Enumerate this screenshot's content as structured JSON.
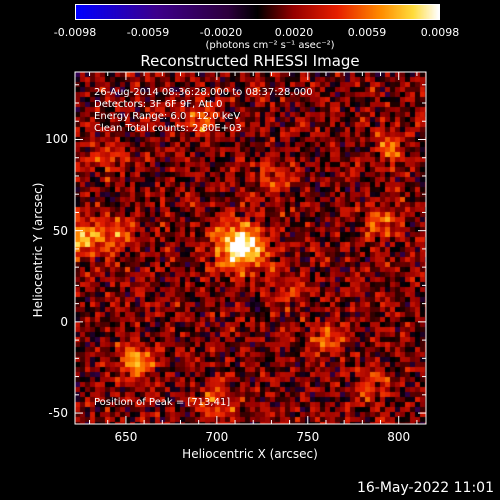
{
  "chart_data": {
    "type": "heatmap",
    "title": "Reconstructed RHESSI Image",
    "xlabel": "Heliocentric X (arcsec)",
    "ylabel": "Heliocentric Y (arcsec)",
    "xlim": [
      622,
      815
    ],
    "ylim": [
      -56,
      137
    ],
    "x_ticks": [
      650,
      700,
      750,
      800
    ],
    "y_ticks": [
      -50,
      0,
      50,
      100
    ],
    "colorbar": {
      "ticks": [
        "-0.0098",
        "-0.0059",
        "-0.0020",
        "0.0020",
        "0.0059",
        "0.0098"
      ],
      "range": [
        -0.0098,
        0.0098
      ],
      "units": "(photons cm⁻² s⁻¹ asec⁻²)"
    },
    "info": {
      "time": "26-Aug-2014 08:36:28.000 to 08:37:28.000",
      "detectors": "Detectors: 3F 6F 9F, Att 0",
      "energy": "Energy Range: 6.0 - 12.0 keV",
      "clean": "Clean     Total counts: 2.80E+03"
    },
    "peak": {
      "label": "Position of Peak = [713,41]",
      "x": 713,
      "y": 41,
      "value": 0.0098
    },
    "sources": [
      {
        "x": 713,
        "y": 41,
        "amp": 0.0098
      },
      {
        "x": 625,
        "y": 47,
        "amp": 0.0065
      },
      {
        "x": 655,
        "y": -22,
        "amp": 0.0055
      },
      {
        "x": 645,
        "y": 48,
        "amp": 0.004
      },
      {
        "x": 790,
        "y": 55,
        "amp": 0.004
      },
      {
        "x": 760,
        "y": -10,
        "amp": 0.004
      },
      {
        "x": 690,
        "y": 110,
        "amp": 0.0035
      },
      {
        "x": 700,
        "y": -45,
        "amp": 0.0035
      },
      {
        "x": 785,
        "y": -35,
        "amp": 0.003
      },
      {
        "x": 730,
        "y": 80,
        "amp": 0.003
      },
      {
        "x": 795,
        "y": 95,
        "amp": 0.003
      },
      {
        "x": 640,
        "y": 90,
        "amp": 0.0028
      },
      {
        "x": 740,
        "y": 20,
        "amp": 0.0025
      }
    ]
  },
  "footer": {
    "date": "16-May-2022 11:01"
  }
}
